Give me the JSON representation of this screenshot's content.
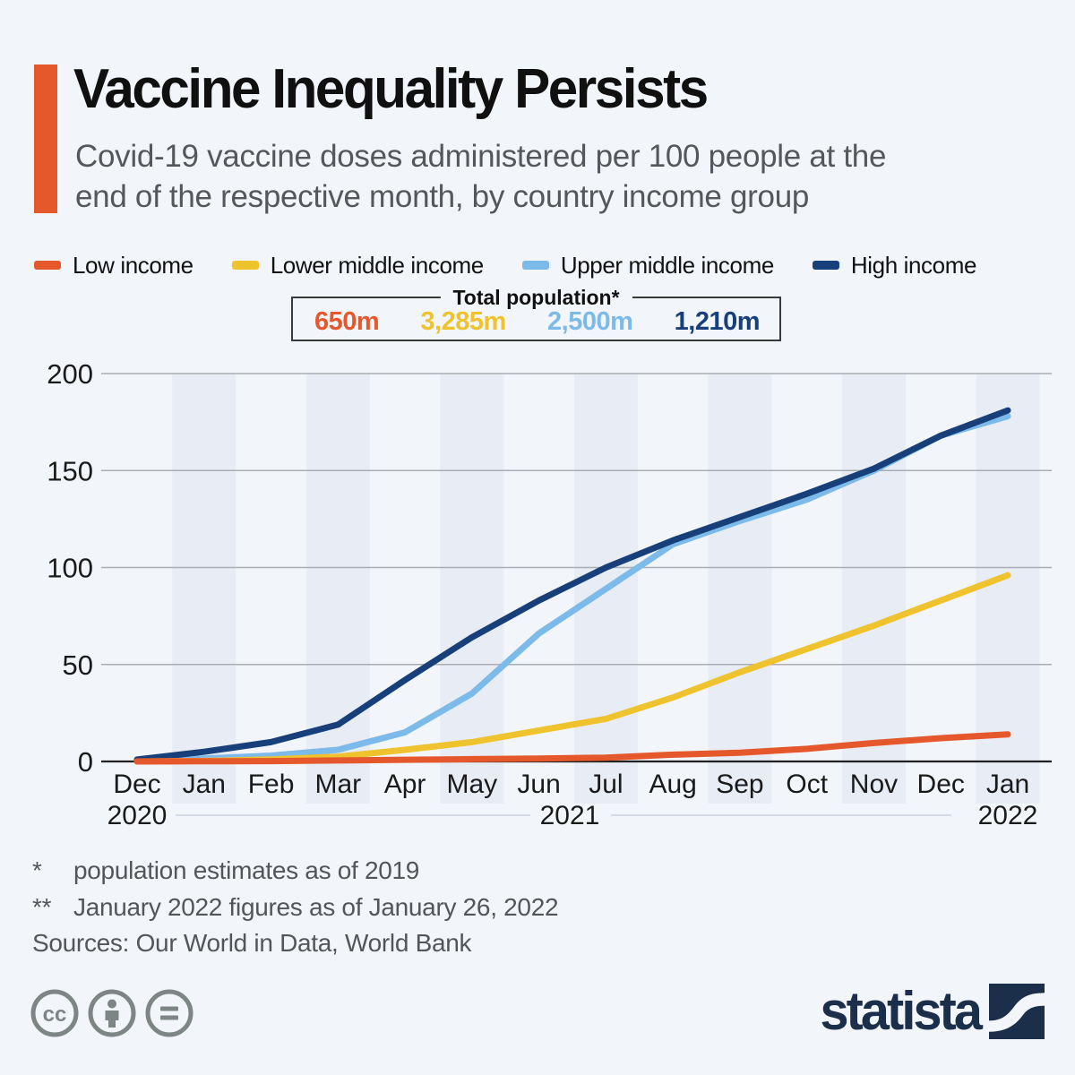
{
  "header": {
    "title": "Vaccine Inequality Persists",
    "subtitle_line1": "Covid-19 vaccine doses administered per 100 people at the",
    "subtitle_line2": "end of the respective month, by country income group"
  },
  "colors": {
    "background": "#F2F5FA",
    "stripe": "#E8ECF5",
    "accent_bar": "#E5582C",
    "gridline": "#AAADB2",
    "zero_line": "#212121",
    "axis_text": "#1A1A1A",
    "year_separator": "#D4DBE7",
    "brand_navy": "#1B2E4A",
    "license_gray": "#7E8685"
  },
  "population_box": {
    "title": "Total population*"
  },
  "chart_data": {
    "type": "line",
    "title": "Covid-19 vaccine doses administered per 100 people at the end of the respective month, by country income group",
    "x_labels": [
      "Dec",
      "Jan",
      "Feb",
      "Mar",
      "Apr",
      "May",
      "Jun",
      "Jul",
      "Aug",
      "Sep",
      "Oct",
      "Nov",
      "Dec",
      "Jan"
    ],
    "year_labels": [
      "2020",
      "2021",
      "2022"
    ],
    "ylim": [
      0,
      200
    ],
    "yticks": [
      0,
      50,
      100,
      150,
      200
    ],
    "grid": "horizontal-only",
    "band_shading": "alternate-months",
    "legend_position": "top",
    "series": [
      {
        "name": "Low income",
        "color": "#E5582C",
        "total_population": "650m",
        "values": [
          0,
          0.1,
          0.2,
          0.5,
          0.9,
          1.2,
          1.5,
          2,
          3.5,
          4.5,
          6.5,
          9.5,
          12,
          14
        ]
      },
      {
        "name": "Lower middle income",
        "color": "#EFC32E",
        "total_population": "3,285m",
        "values": [
          0,
          0.3,
          1,
          2.5,
          6,
          10,
          16,
          22,
          33,
          46,
          58,
          70,
          83,
          96
        ]
      },
      {
        "name": "Upper middle income",
        "color": "#7CBAEA",
        "total_population": "2,500m",
        "values": [
          0.3,
          1.5,
          3,
          6,
          15,
          35,
          66,
          89,
          112,
          124,
          135,
          150,
          168,
          178
        ]
      },
      {
        "name": "High income",
        "color": "#17407A",
        "total_population": "1,210m",
        "values": [
          1,
          5,
          10,
          19,
          42,
          64,
          83,
          100,
          114,
          126,
          138,
          151,
          168,
          181
        ]
      }
    ]
  },
  "footnotes": {
    "fn1_marker": "*",
    "fn1_text": "population estimates as of 2019",
    "fn2_marker": "**",
    "fn2_text": "January 2022 figures as of January 26, 2022",
    "sources": "Sources: Our World in Data, World Bank"
  },
  "footer": {
    "license_icons": [
      "cc-icon",
      "attribution-person-icon",
      "no-derivatives-equals-icon"
    ],
    "brand_wordmark": "statista"
  }
}
